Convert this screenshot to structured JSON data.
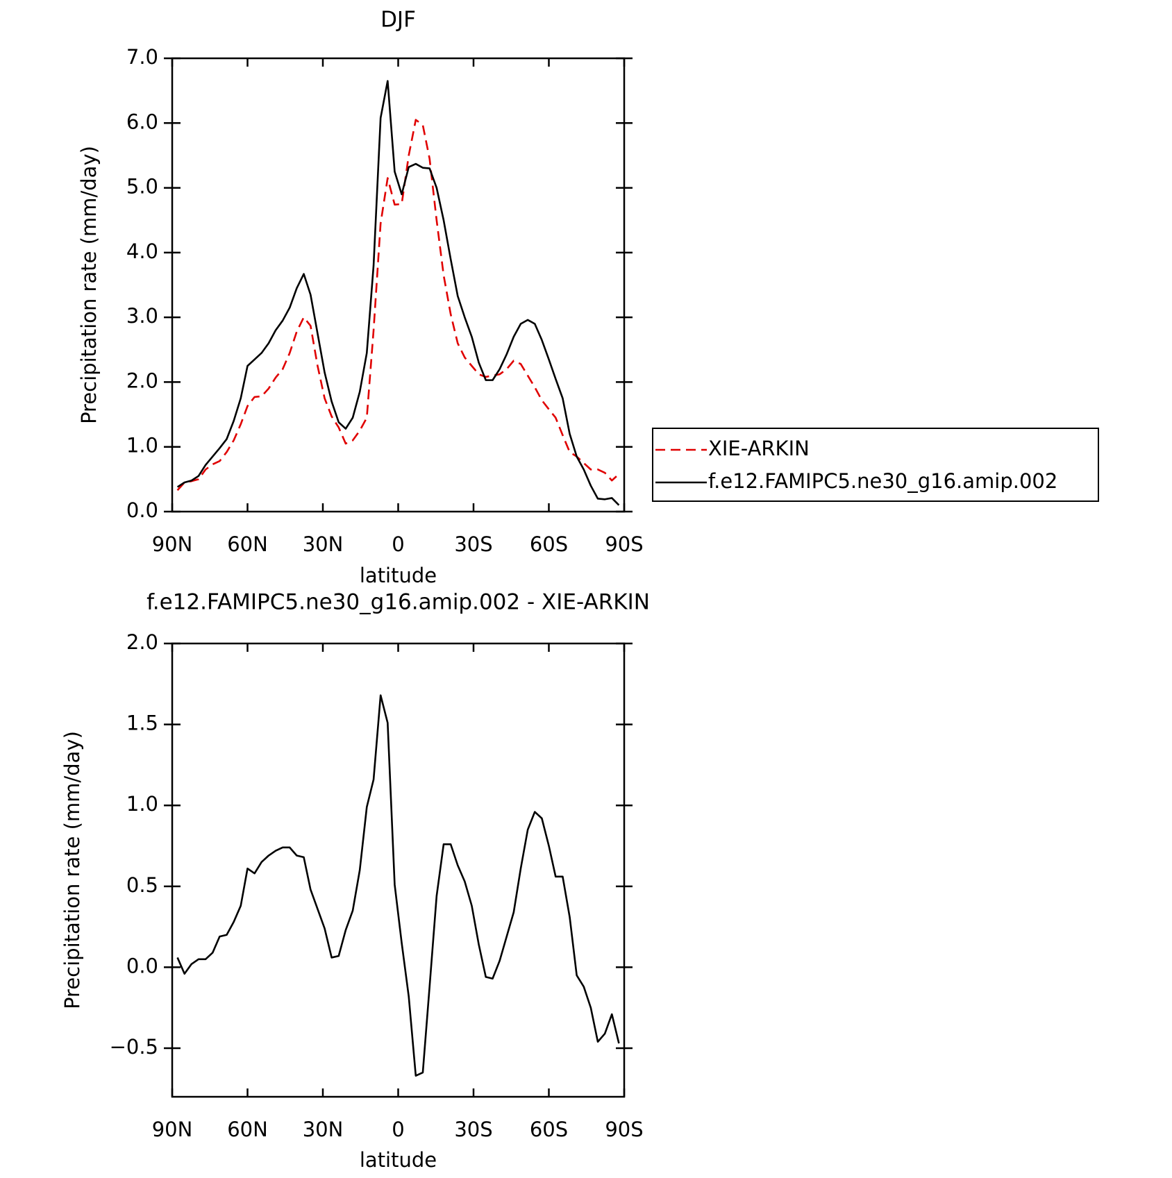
{
  "chart_data": [
    {
      "type": "line",
      "title": "DJF",
      "x_label": "latitude",
      "y_label": "Precipitation rate (mm/day)",
      "x": [
        87.9,
        85.1,
        82.3,
        79.5,
        76.7,
        73.9,
        71.1,
        68.3,
        65.5,
        62.7,
        60.0,
        57.2,
        54.4,
        51.6,
        48.8,
        46.0,
        43.2,
        40.4,
        37.6,
        34.9,
        32.1,
        29.3,
        26.5,
        23.7,
        20.9,
        18.1,
        15.3,
        12.5,
        9.8,
        7.0,
        4.2,
        1.4,
        -1.4,
        -4.2,
        -7.0,
        -9.8,
        -12.5,
        -15.3,
        -18.1,
        -20.9,
        -23.7,
        -26.5,
        -29.3,
        -32.1,
        -34.9,
        -37.6,
        -40.4,
        -43.2,
        -46.0,
        -48.8,
        -51.6,
        -54.4,
        -57.2,
        -60.0,
        -62.7,
        -65.5,
        -68.3,
        -71.1,
        -73.9,
        -76.7,
        -79.5,
        -82.3,
        -85.1,
        -87.9
      ],
      "series": [
        {
          "name": "XIE-ARKIN",
          "color": "#e00000",
          "dashed": true,
          "values": [
            0.33,
            0.45,
            0.47,
            0.5,
            0.65,
            0.73,
            0.78,
            0.92,
            1.1,
            1.35,
            1.63,
            1.77,
            1.78,
            1.9,
            2.07,
            2.2,
            2.45,
            2.78,
            3.0,
            2.87,
            2.25,
            1.75,
            1.47,
            1.3,
            1.05,
            1.1,
            1.25,
            1.45,
            2.8,
            4.45,
            5.15,
            4.74,
            4.75,
            5.5,
            6.05,
            5.97,
            5.45,
            4.5,
            3.65,
            3.05,
            2.6,
            2.38,
            2.25,
            2.12,
            2.08,
            2.1,
            2.12,
            2.2,
            2.33,
            2.28,
            2.1,
            1.92,
            1.72,
            1.58,
            1.45,
            1.18,
            0.92,
            0.85,
            0.75,
            0.65,
            0.65,
            0.6,
            0.48,
            0.58
          ]
        },
        {
          "name": "f.e12.FAMIPC5.ne30_g16.amip.002",
          "color": "#000000",
          "dashed": false,
          "values": [
            0.38,
            0.45,
            0.48,
            0.55,
            0.72,
            0.85,
            0.98,
            1.12,
            1.4,
            1.75,
            2.25,
            2.35,
            2.45,
            2.6,
            2.8,
            2.95,
            3.15,
            3.45,
            3.67,
            3.35,
            2.75,
            2.15,
            1.7,
            1.38,
            1.28,
            1.45,
            1.85,
            2.45,
            3.8,
            6.08,
            6.65,
            5.25,
            4.9,
            5.32,
            5.37,
            5.31,
            5.3,
            5.0,
            4.5,
            3.9,
            3.33,
            3.0,
            2.7,
            2.3,
            2.03,
            2.03,
            2.2,
            2.43,
            2.7,
            2.9,
            2.96,
            2.9,
            2.65,
            2.35,
            2.05,
            1.75,
            1.2,
            0.85,
            0.65,
            0.4,
            0.2,
            0.19,
            0.21,
            0.1
          ]
        }
      ],
      "xlim": [
        90,
        -90
      ],
      "xticks": [
        {
          "value": 90,
          "label": "90N"
        },
        {
          "value": 60,
          "label": "60N"
        },
        {
          "value": 30,
          "label": "30N"
        },
        0,
        {
          "value": -30,
          "label": "30S"
        },
        {
          "value": -60,
          "label": "60S"
        },
        {
          "value": -90,
          "label": "90S"
        }
      ],
      "ylim": [
        0,
        7
      ],
      "yticks": [
        {
          "value": 0,
          "label": "0.0"
        },
        {
          "value": 1,
          "label": "1.0"
        },
        {
          "value": 2,
          "label": "2.0"
        },
        {
          "value": 3,
          "label": "3.0"
        },
        {
          "value": 4,
          "label": "4.0"
        },
        {
          "value": 5,
          "label": "5.0"
        },
        {
          "value": 6,
          "label": "6.0"
        },
        {
          "value": 7,
          "label": "7.0"
        }
      ],
      "legend": "outside-right"
    },
    {
      "type": "line",
      "title": "f.e12.FAMIPC5.ne30_g16.amip.002 - XIE-ARKIN",
      "x_label": "latitude",
      "y_label": "Precipitation rate (mm/day)",
      "x": [
        87.9,
        85.1,
        82.3,
        79.5,
        76.7,
        73.9,
        71.1,
        68.3,
        65.5,
        62.7,
        60.0,
        57.2,
        54.4,
        51.6,
        48.8,
        46.0,
        43.2,
        40.4,
        37.6,
        34.9,
        32.1,
        29.3,
        26.5,
        23.7,
        20.9,
        18.1,
        15.3,
        12.5,
        9.8,
        7.0,
        4.2,
        1.4,
        -1.4,
        -4.2,
        -7.0,
        -9.8,
        -12.5,
        -15.3,
        -18.1,
        -20.9,
        -23.7,
        -26.5,
        -29.3,
        -32.1,
        -34.9,
        -37.6,
        -40.4,
        -43.2,
        -46.0,
        -48.8,
        -51.6,
        -54.4,
        -57.2,
        -60.0,
        -62.7,
        -65.5,
        -68.3,
        -71.1,
        -73.9,
        -76.7,
        -79.5,
        -82.3,
        -85.1,
        -87.9
      ],
      "series": [
        {
          "color": "#000000",
          "dashed": false,
          "values": [
            0.06,
            -0.04,
            0.02,
            0.05,
            0.05,
            0.09,
            0.19,
            0.2,
            0.28,
            0.38,
            0.61,
            0.58,
            0.65,
            0.69,
            0.72,
            0.74,
            0.74,
            0.69,
            0.68,
            0.48,
            0.36,
            0.24,
            0.06,
            0.07,
            0.23,
            0.35,
            0.6,
            0.99,
            1.16,
            1.68,
            1.51,
            0.51,
            0.15,
            -0.18,
            -0.67,
            -0.65,
            -0.12,
            0.44,
            0.76,
            0.76,
            0.63,
            0.53,
            0.38,
            0.14,
            -0.06,
            -0.07,
            0.04,
            0.19,
            0.34,
            0.61,
            0.85,
            0.96,
            0.92,
            0.75,
            0.56,
            0.56,
            0.31,
            -0.05,
            -0.12,
            -0.25,
            -0.46,
            -0.41,
            -0.29,
            -0.47
          ]
        }
      ],
      "xlim": [
        90,
        -90
      ],
      "xticks": [
        {
          "value": 90,
          "label": "90N"
        },
        {
          "value": 60,
          "label": "60N"
        },
        {
          "value": 30,
          "label": "30N"
        },
        0,
        {
          "value": -30,
          "label": "30S"
        },
        {
          "value": -60,
          "label": "60S"
        },
        {
          "value": -90,
          "label": "90S"
        }
      ],
      "ylim": [
        -0.8,
        2.0
      ],
      "yticks": [
        {
          "value": -0.5,
          "label": "−0.5"
        },
        {
          "value": 0,
          "label": "0.0"
        },
        0.5,
        {
          "value": 1,
          "label": "1.0"
        },
        1.5,
        {
          "value": 2,
          "label": "2.0"
        }
      ]
    }
  ]
}
